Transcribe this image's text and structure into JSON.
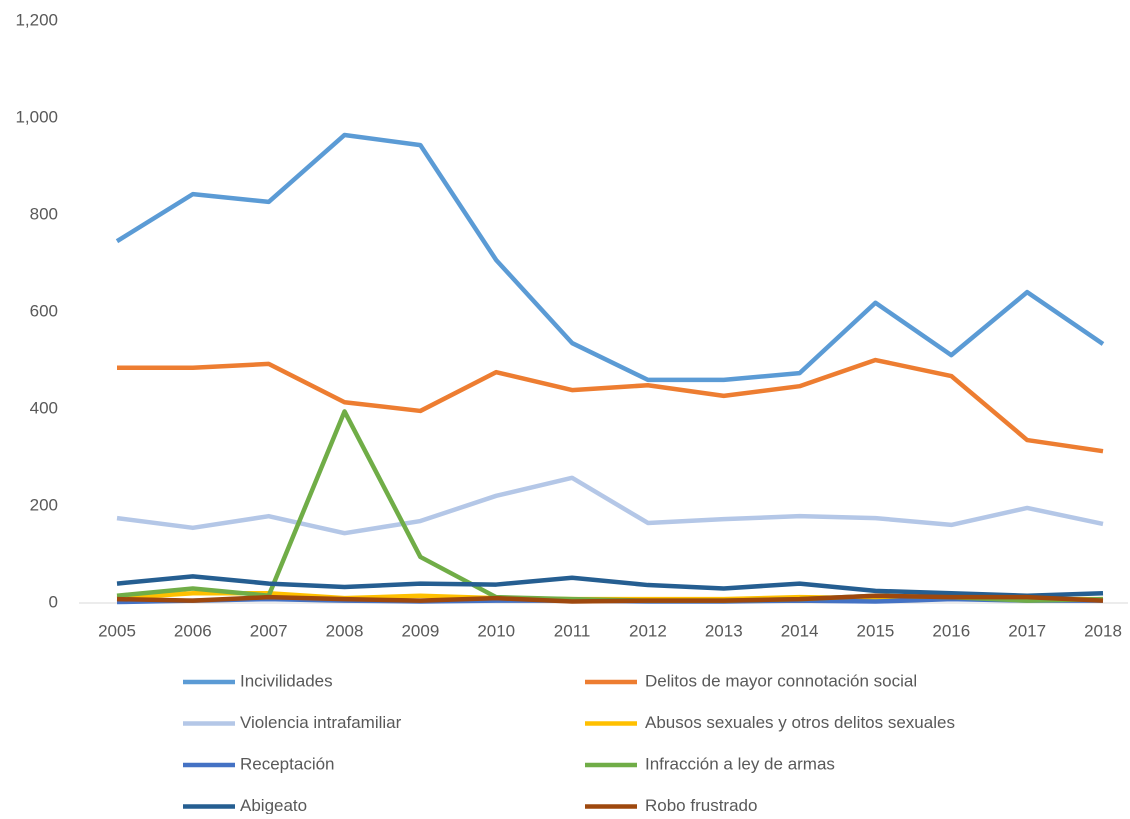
{
  "chart_data": {
    "type": "line",
    "categories": [
      "2005",
      "2006",
      "2007",
      "2008",
      "2009",
      "2010",
      "2011",
      "2012",
      "2013",
      "2014",
      "2015",
      "2016",
      "2017",
      "2018"
    ],
    "series": [
      {
        "name": "Incivilidades",
        "color": "#5b9bd5",
        "values": [
          746,
          843,
          827,
          965,
          944,
          707,
          536,
          460,
          460,
          474,
          619,
          511,
          641,
          534
        ]
      },
      {
        "name": "Delitos de mayor connotación social",
        "color": "#ed7d31",
        "values": [
          485,
          485,
          493,
          414,
          396,
          476,
          439,
          449,
          427,
          447,
          501,
          468,
          336,
          313
        ]
      },
      {
        "name": "Violencia intrafamiliar",
        "color": "#b4c7e7",
        "values": [
          175,
          155,
          179,
          144,
          169,
          221,
          258,
          165,
          173,
          179,
          175,
          161,
          196,
          163
        ]
      },
      {
        "name": "Abusos sexuales y otros delitos sexuales",
        "color": "#ffc000",
        "values": [
          10,
          20,
          20,
          10,
          15,
          10,
          8,
          8,
          8,
          12,
          10,
          10,
          8,
          8
        ]
      },
      {
        "name": "Receptación",
        "color": "#4472c4",
        "values": [
          2,
          5,
          8,
          5,
          3,
          5,
          5,
          3,
          3,
          5,
          3,
          8,
          5,
          5
        ]
      },
      {
        "name": "Infracción a ley de armas",
        "color": "#70ad47",
        "values": [
          15,
          30,
          15,
          395,
          95,
          12,
          8,
          5,
          5,
          8,
          15,
          12,
          5,
          8
        ]
      },
      {
        "name": "Abigeato",
        "color": "#255e91",
        "values": [
          40,
          55,
          40,
          33,
          40,
          38,
          52,
          37,
          30,
          40,
          25,
          20,
          15,
          20
        ]
      },
      {
        "name": "Robo frustrado",
        "color": "#9e480e",
        "values": [
          8,
          5,
          12,
          8,
          5,
          10,
          3,
          5,
          5,
          8,
          15,
          12,
          12,
          5
        ]
      }
    ],
    "ylim": [
      0,
      1200
    ],
    "yticks": [
      0,
      200,
      400,
      600,
      800,
      {
        "value": 1000,
        "label": "1,000"
      },
      {
        "value": 1200,
        "label": "1,200"
      }
    ],
    "grid": false,
    "legend": "bottom"
  }
}
